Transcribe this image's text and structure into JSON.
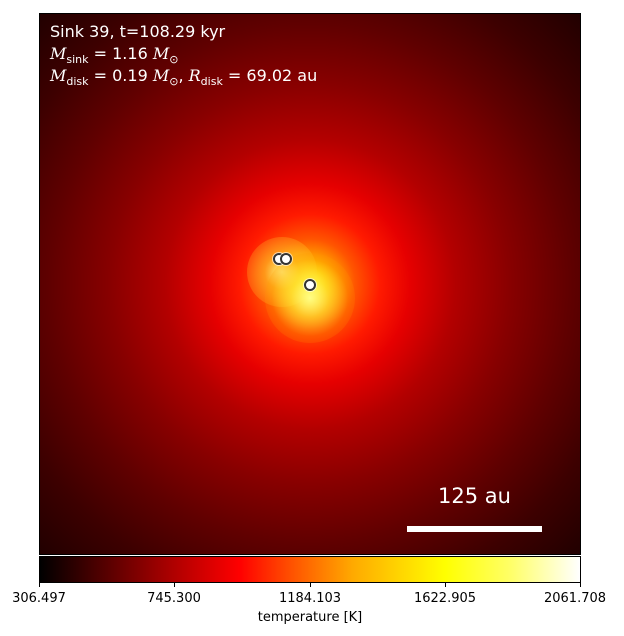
{
  "info": {
    "line1": "Sink 39, t=108.29 kyr",
    "m_sink_value": "= 1.16",
    "m_disk_value": "= 0.19",
    "r_disk_value": "= 69.02",
    "sun_symbol": "⊙",
    "au_unit": "au"
  },
  "scale_bar": {
    "label": "125 au"
  },
  "colorbar": {
    "ticks": [
      "306.497",
      "745.300",
      "1184.103",
      "1622.905",
      "2061.708"
    ],
    "label": "temperature [K]",
    "colormap": [
      "#000000",
      "#aa0000",
      "#ff0000",
      "#ffaa00",
      "#ffff00",
      "#ffffff"
    ]
  }
}
